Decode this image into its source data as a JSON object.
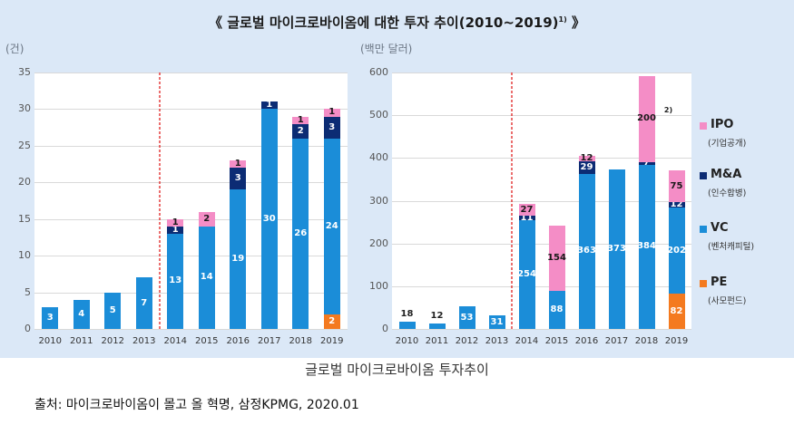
{
  "title": "《 글로벌 마이크로바이옴에 대한 투자 추이(2010~2019)",
  "title_note": "1)",
  "title_suffix": " 》",
  "caption": "글로벌 마이크로바이옴 투자추이",
  "source": "출처: 마이크로바이옴이 몰고 올 혁명, 삼정KPMG, 2020.01",
  "colors": {
    "IPO": "#f48dc6",
    "MnA": "#0c2c74",
    "VC": "#1b8dd8",
    "PE": "#f47a1f",
    "panel": "#dbe8f7",
    "divider": "#e02020"
  },
  "legend": [
    {
      "key": "IPO",
      "name": "IPO",
      "sub": "(기업공개)"
    },
    {
      "key": "MnA",
      "name": "M&A",
      "sub": "(인수합병)"
    },
    {
      "key": "VC",
      "name": "VC",
      "sub": "(벤처캐피털)"
    },
    {
      "key": "PE",
      "name": "PE",
      "sub": "(사모펀드)"
    }
  ],
  "chart_data": [
    {
      "type": "bar",
      "stacked": true,
      "unit_label": "(건)",
      "categories": [
        "2010",
        "2011",
        "2012",
        "2013",
        "2014",
        "2015",
        "2016",
        "2017",
        "2018",
        "2019"
      ],
      "ylim": [
        0,
        35
      ],
      "yticks": [
        0,
        5,
        10,
        15,
        20,
        25,
        30,
        35
      ],
      "divider_after": "2013",
      "series": [
        {
          "name": "PE",
          "values": [
            0,
            0,
            0,
            0,
            0,
            0,
            0,
            0,
            0,
            2
          ]
        },
        {
          "name": "VC",
          "values": [
            3,
            4,
            5,
            7,
            13,
            14,
            19,
            30,
            26,
            24
          ]
        },
        {
          "name": "M&A",
          "values": [
            0,
            0,
            0,
            0,
            1,
            0,
            3,
            1,
            2,
            3
          ]
        },
        {
          "name": "IPO",
          "values": [
            0,
            0,
            0,
            0,
            1,
            2,
            1,
            0,
            1,
            1
          ]
        }
      ]
    },
    {
      "type": "bar",
      "stacked": true,
      "unit_label": "(백만 달러)",
      "categories": [
        "2010",
        "2011",
        "2012",
        "2013",
        "2014",
        "2015",
        "2016",
        "2017",
        "2018",
        "2019"
      ],
      "ylim": [
        0,
        600
      ],
      "yticks": [
        0,
        100,
        200,
        300,
        400,
        500,
        600
      ],
      "divider_after": "2013",
      "series": [
        {
          "name": "PE",
          "values": [
            0,
            0,
            0,
            0,
            0,
            0,
            0,
            0,
            0,
            82
          ]
        },
        {
          "name": "VC",
          "values": [
            18,
            12,
            53,
            31,
            254,
            88,
            363,
            373,
            384,
            202
          ]
        },
        {
          "name": "M&A",
          "values": [
            0,
            0,
            0,
            0,
            11,
            0,
            29,
            0,
            7,
            12
          ]
        },
        {
          "name": "IPO",
          "values": [
            0,
            0,
            0,
            0,
            27,
            154,
            12,
            0,
            200,
            75
          ]
        }
      ],
      "annotations": [
        {
          "category": "2018",
          "text": "2)"
        }
      ]
    }
  ]
}
